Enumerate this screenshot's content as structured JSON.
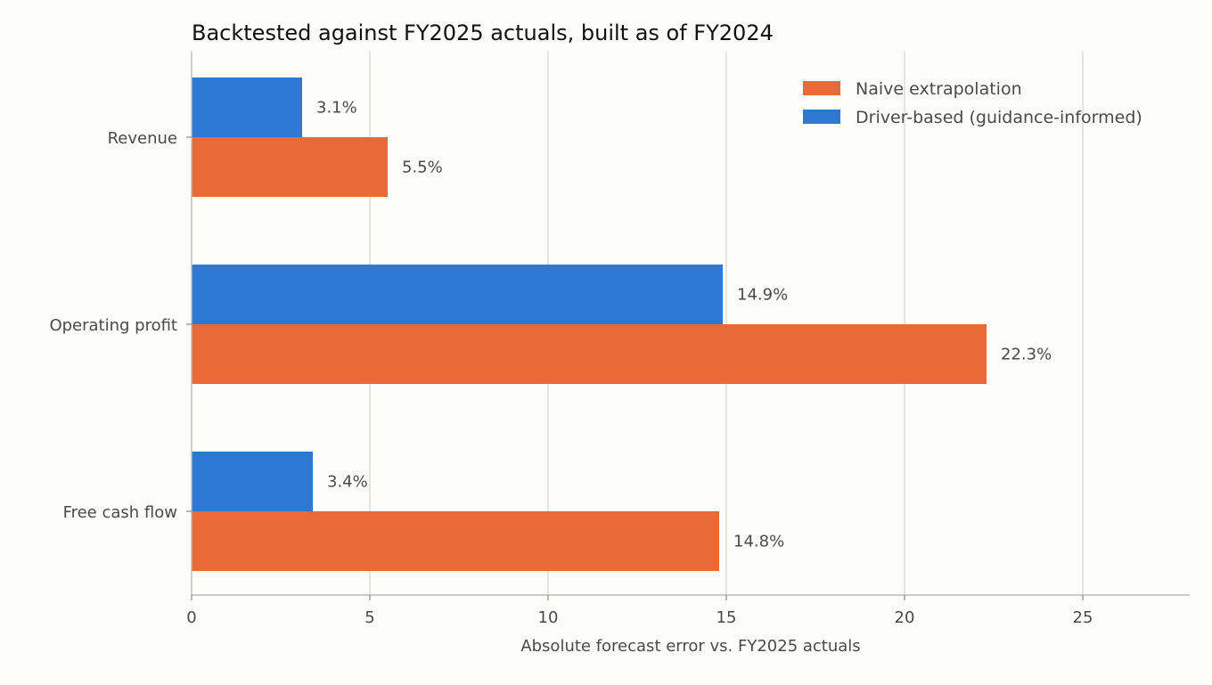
{
  "chart_data": {
    "type": "bar",
    "orientation": "horizontal",
    "title": "Backtested against FY2025 actuals, built as of FY2024",
    "xlabel": "Absolute forecast error vs. FY2025 actuals",
    "ylabel": "",
    "categories": [
      "Revenue",
      "Operating profit",
      "Free cash flow"
    ],
    "series": [
      {
        "name": "Naive extrapolation",
        "color": "#e96a37",
        "values": [
          5.5,
          22.3,
          14.8
        ],
        "labels": [
          "5.5%",
          "22.3%",
          "14.8%"
        ]
      },
      {
        "name": "Driver-based (guidance-informed)",
        "color": "#2b78d5",
        "values": [
          3.1,
          14.9,
          3.4
        ],
        "labels": [
          "3.1%",
          "14.9%",
          "3.4%"
        ]
      }
    ],
    "xlim": [
      0,
      28
    ],
    "xticks": [
      0,
      5,
      10,
      15,
      20,
      25
    ],
    "xtick_labels": [
      "0",
      "5",
      "10",
      "15",
      "20",
      "25"
    ],
    "grid": "vertical",
    "legend": "top-right"
  }
}
